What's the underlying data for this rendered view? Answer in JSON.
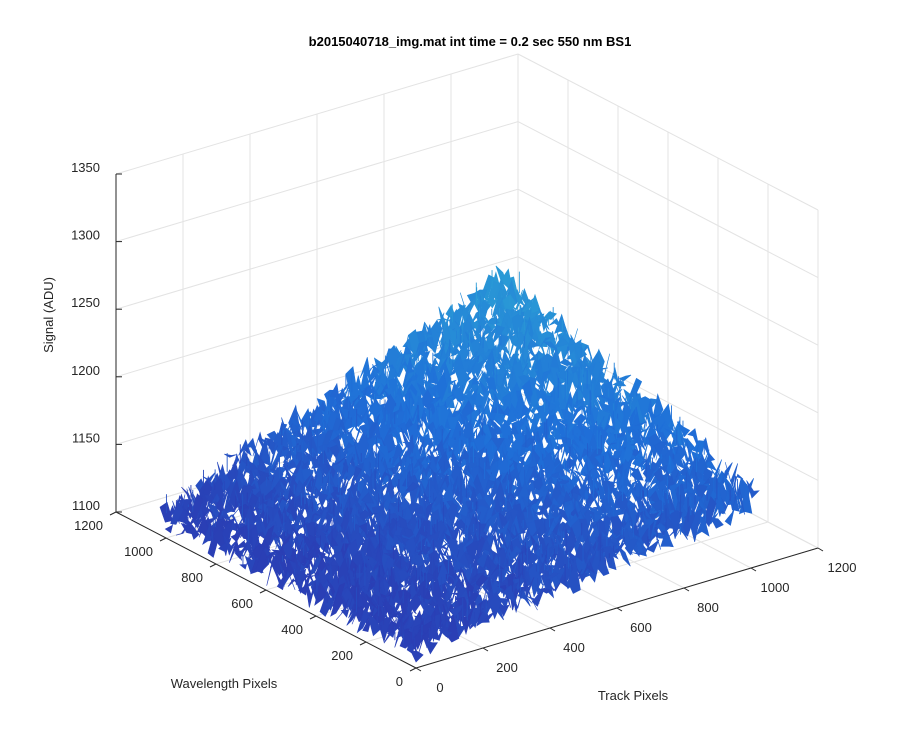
{
  "chart_data": {
    "type": "surface3d",
    "title": "b2015040718_img.mat int time = 0.2 sec  550 nm BS1",
    "xlabel": "Track Pixels",
    "ylabel": "Wavelength Pixels",
    "zlabel": "Signal (ADU)",
    "xlim": [
      0,
      1200
    ],
    "ylim": [
      0,
      1200
    ],
    "zlim": [
      1100,
      1350
    ],
    "x_ticks": [
      "0",
      "200",
      "400",
      "600",
      "800",
      "1000",
      "1200"
    ],
    "y_ticks": [
      "0",
      "200",
      "400",
      "600",
      "800",
      "1000",
      "1200"
    ],
    "z_ticks": [
      "1100",
      "1150",
      "1200",
      "1250",
      "1300",
      "1350"
    ],
    "grid": true,
    "surface": {
      "x_range": [
        0,
        1024
      ],
      "y_range": [
        0,
        1024
      ],
      "z_corners": {
        "x0_y0": 1115,
        "x1024_y0": 1150,
        "x0_y1024": 1115,
        "x1024_y1024": 1215
      },
      "noise_amplitude": 12,
      "colormap": [
        "#2a3fb5",
        "#1f6fd8",
        "#2a9ad6"
      ]
    }
  }
}
